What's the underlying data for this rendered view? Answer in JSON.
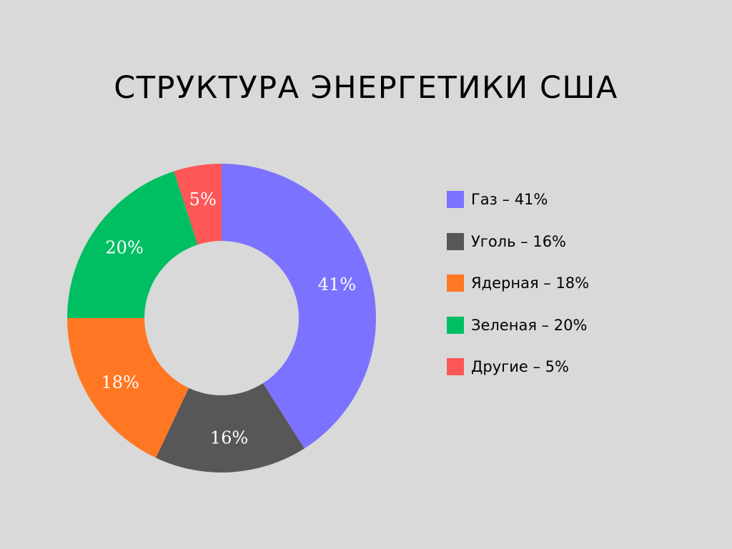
{
  "chart_data": {
    "type": "pie",
    "title": "СТРУКТУРА ЭНЕРГЕТИКИ США",
    "donut": true,
    "slices": [
      {
        "legend": "Газ – 41%",
        "value": 41,
        "data_label": "41%",
        "color": "#7b73ff"
      },
      {
        "legend": "Уголь – 16%",
        "value": 16,
        "data_label": "16%",
        "color": "#575757"
      },
      {
        "legend": "Ядерная – 18%",
        "value": 18,
        "data_label": "18%",
        "color": "#ff7722"
      },
      {
        "legend": "Зеленая – 20%",
        "value": 20,
        "data_label": "20%",
        "color": "#00bf63"
      },
      {
        "legend": "Другие – 5%",
        "value": 5,
        "data_label": "5%",
        "color": "#ff5757"
      }
    ],
    "legend_position": "right"
  }
}
